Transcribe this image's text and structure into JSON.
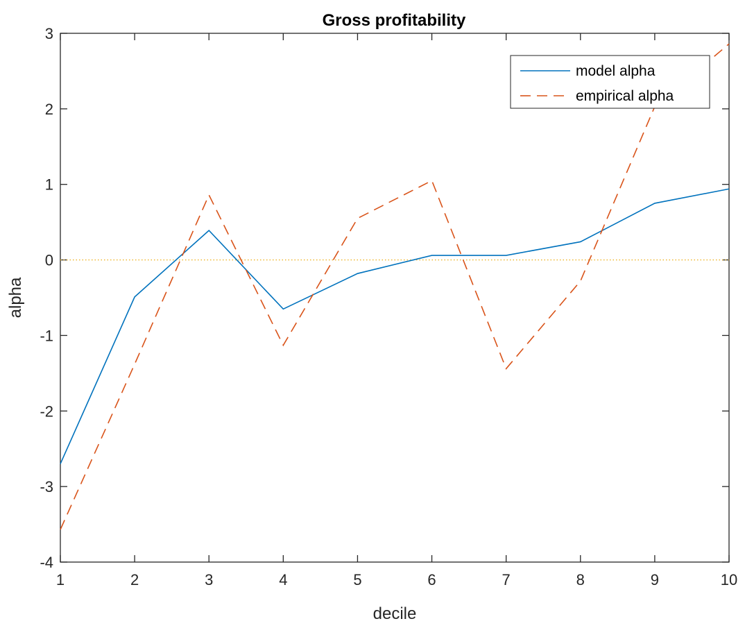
{
  "chart_data": {
    "type": "line",
    "title": "Gross profitability",
    "xlabel": "decile",
    "ylabel": "alpha",
    "xlim": [
      1,
      10
    ],
    "ylim": [
      -4,
      3
    ],
    "xticks": [
      "1",
      "2",
      "3",
      "4",
      "5",
      "6",
      "7",
      "8",
      "9",
      "10"
    ],
    "yticks": [
      "-4",
      "-3",
      "-2",
      "-1",
      "0",
      "1",
      "2",
      "3"
    ],
    "x": [
      1,
      2,
      3,
      4,
      5,
      6,
      7,
      8,
      9,
      10
    ],
    "series": [
      {
        "name": "model alpha",
        "values": [
          -2.7,
          -0.49,
          0.39,
          -0.65,
          -0.18,
          0.06,
          0.06,
          0.24,
          0.75,
          0.94
        ],
        "color": "#0072BD",
        "style": "solid"
      },
      {
        "name": "empirical alpha",
        "values": [
          -3.57,
          -1.38,
          0.86,
          -1.13,
          0.55,
          1.05,
          -1.44,
          -0.28,
          2.03,
          2.86
        ],
        "color": "#D95319",
        "style": "dashed"
      }
    ],
    "reference_line": {
      "y": 0,
      "color": "#EDB120",
      "style": "dotted"
    },
    "legend_position": "top-right",
    "grid": false
  }
}
